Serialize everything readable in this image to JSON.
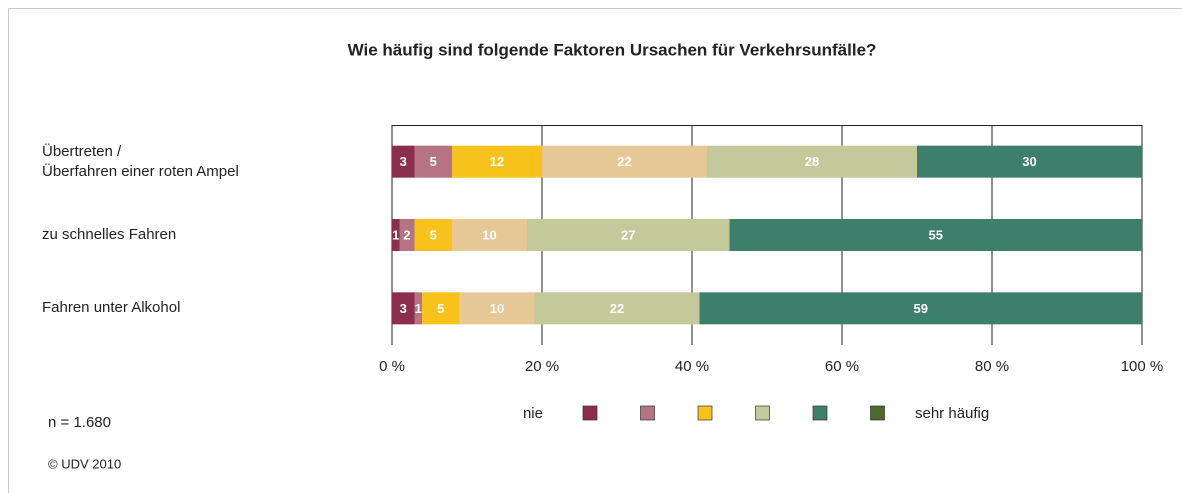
{
  "chart_data": {
    "type": "stacked-barh",
    "title": "Wie häufig sind folgende Faktoren Ursachen für Verkehrsunfälle?",
    "categories": [
      "Übertreten /\nÜberfahren einer roten Ampel",
      "zu schnelles Fahren",
      "Fahren unter Alkohol"
    ],
    "series": [
      {
        "color": "#8b2d4d",
        "values": [
          3,
          1,
          3
        ]
      },
      {
        "color": "#b67482",
        "values": [
          5,
          2,
          1
        ]
      },
      {
        "color": "#f8c21c",
        "values": [
          12,
          5,
          5
        ]
      },
      {
        "color": "#e6c796",
        "values": [
          22,
          10,
          10
        ]
      },
      {
        "color": "#c3c99b",
        "values": [
          28,
          27,
          22
        ]
      },
      {
        "color": "#3e7f6c",
        "values": [
          30,
          55,
          59
        ]
      }
    ],
    "xlim": [
      0,
      100
    ],
    "xticks": [
      {
        "value": 0,
        "label": "0 %"
      },
      {
        "value": 20,
        "label": "20 %"
      },
      {
        "value": 40,
        "label": "40 %"
      },
      {
        "value": 60,
        "label": "60 %"
      },
      {
        "value": 80,
        "label": "80 %"
      },
      {
        "value": 100,
        "label": "100 %"
      }
    ],
    "grid": true,
    "legend": {
      "start": "nie",
      "end": "sehr häufig",
      "colors": [
        "#8b2d4d",
        "#b67482",
        "#f8c21c",
        "#c3c99b",
        "#3e7f6c",
        "#4b6a2c"
      ]
    },
    "notes": [
      "n = 1.680",
      "© UDV 2010"
    ]
  }
}
